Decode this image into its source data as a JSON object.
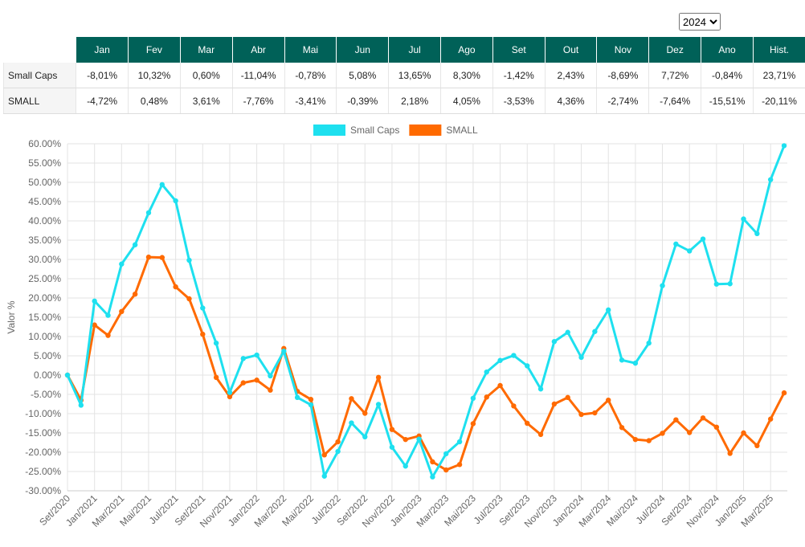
{
  "year_select": "2024",
  "table": {
    "header": [
      "Jan",
      "Fev",
      "Mar",
      "Abr",
      "Mai",
      "Jun",
      "Jul",
      "Ago",
      "Set",
      "Out",
      "Nov",
      "Dez",
      "Ano",
      "Hist."
    ],
    "rows": [
      [
        "Small Caps",
        "-8,01%",
        "10,32%",
        "0,60%",
        "-11,04%",
        "-0,78%",
        "5,08%",
        "13,65%",
        "8,30%",
        "-1,42%",
        "2,43%",
        "-8,69%",
        "7,72%",
        "-0,84%",
        "23,71%"
      ],
      [
        "SMALL",
        "-4,72%",
        "0,48%",
        "3,61%",
        "-7,76%",
        "-3,41%",
        "-0,39%",
        "2,18%",
        "4,05%",
        "-3,53%",
        "4,36%",
        "-2,74%",
        "-7,64%",
        "-15,51%",
        "-20,11%"
      ]
    ]
  },
  "chart_data": {
    "type": "line",
    "y_label": "Valor %",
    "grid": true,
    "legend": "top",
    "categories": [
      "Set/2020",
      null,
      "Jan/2021",
      null,
      "Mar/2021",
      null,
      "Mai/2021",
      null,
      "Jul/2021",
      null,
      "Set/2021",
      null,
      "Nov/2021",
      null,
      "Jan/2022",
      null,
      "Mar/2022",
      null,
      "Mai/2022",
      null,
      "Jul/2022",
      null,
      "Set/2022",
      null,
      "Nov/2022",
      null,
      "Jan/2023",
      null,
      "Mar/2023",
      null,
      "Mai/2023",
      null,
      "Jul/2023",
      null,
      "Set/2023",
      null,
      "Nov/2023",
      null,
      "Jan/2024",
      null,
      "Mar/2024",
      null,
      "Mai/2024",
      null,
      "Jul/2024",
      null,
      "Set/2024",
      null,
      "Nov/2024",
      null,
      "Jan/2025",
      null,
      "Mar/2025",
      null
    ],
    "series": [
      {
        "name": "Small Caps",
        "color": "#1ee0ef",
        "values": [
          0,
          -7.8,
          19.2,
          15.5,
          28.8,
          33.8,
          42.1,
          49.4,
          45.2,
          29.8,
          17.4,
          8.3,
          -4.5,
          4.3,
          5.2,
          -0.2,
          6.2,
          -5.8,
          -7.7,
          -26.2,
          -19.8,
          -12.4,
          -16.0,
          -7.6,
          -18.7,
          -23.6,
          -16.6,
          -26.4,
          -20.4,
          -17.3,
          -6.0,
          0.8,
          3.8,
          5.1,
          2.4,
          -3.6,
          8.7,
          11.1,
          4.6,
          11.3,
          16.9,
          3.9,
          3.1,
          8.3,
          23.2,
          34.0,
          32.2,
          35.3,
          23.6,
          23.7,
          40.5,
          36.7,
          50.7,
          59.5
        ]
      },
      {
        "name": "SMALL",
        "color": "#ff6a00",
        "values": [
          0,
          -6.5,
          13.0,
          10.3,
          16.5,
          21.0,
          30.6,
          30.5,
          22.9,
          19.8,
          10.6,
          -0.6,
          -5.6,
          -2.0,
          -1.3,
          -3.9,
          6.9,
          -4.2,
          -6.3,
          -20.7,
          -17.3,
          -6.1,
          -9.9,
          -0.6,
          -14.1,
          -16.7,
          -15.8,
          -22.5,
          -24.6,
          -23.2,
          -12.6,
          -5.7,
          -2.7,
          -8.0,
          -12.5,
          -15.4,
          -7.5,
          -5.8,
          -10.2,
          -9.8,
          -6.5,
          -13.6,
          -16.7,
          -17.0,
          -15.1,
          -11.6,
          -14.9,
          -11.1,
          -13.5,
          -20.3,
          -15.0,
          -18.3,
          -11.4,
          -4.6
        ]
      }
    ],
    "ylim": [
      -30,
      60
    ],
    "yticks": [
      {
        "value": -30,
        "label": "-30.00%"
      },
      {
        "value": -25,
        "label": "-25.00%"
      },
      {
        "value": -20,
        "label": "-20.00%"
      },
      {
        "value": -15,
        "label": "-15.00%"
      },
      {
        "value": -10,
        "label": "-10.00%"
      },
      {
        "value": -5,
        "label": "-5.00%"
      },
      {
        "value": 0,
        "label": "0.00%"
      },
      {
        "value": 5,
        "label": "5.00%"
      },
      {
        "value": 10,
        "label": "10.00%"
      },
      {
        "value": 15,
        "label": "15.00%"
      },
      {
        "value": 20,
        "label": "20.00%"
      },
      {
        "value": 25,
        "label": "25.00%"
      },
      {
        "value": 30,
        "label": "30.00%"
      },
      {
        "value": 35,
        "label": "35.00%"
      },
      {
        "value": 40,
        "label": "40.00%"
      },
      {
        "value": 45,
        "label": "45.00%"
      },
      {
        "value": 50,
        "label": "50.00%"
      },
      {
        "value": 55,
        "label": "55.00%"
      },
      {
        "value": 60,
        "label": "60.00%"
      }
    ]
  }
}
